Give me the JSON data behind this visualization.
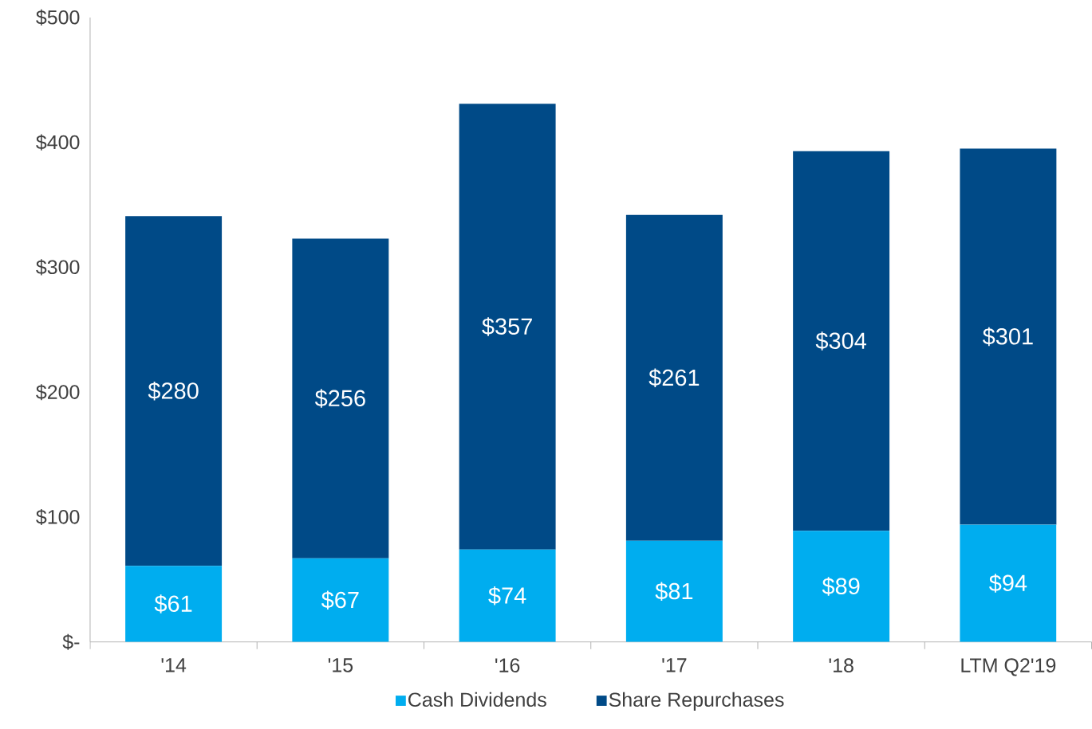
{
  "chart_data": {
    "type": "bar",
    "stacked": true,
    "legend": "bottom",
    "categories": [
      "'14",
      "'15",
      "'16",
      "'17",
      "'18",
      "LTM Q2'19"
    ],
    "series": [
      {
        "name": "Cash Dividends",
        "color": "#00adef",
        "values": [
          61,
          67,
          74,
          81,
          89,
          94
        ],
        "value_labels": [
          "$61",
          "$67",
          "$74",
          "$81",
          "$89",
          "$94"
        ]
      },
      {
        "name": "Share Repurchases",
        "color": "#004a87",
        "values": [
          280,
          256,
          357,
          261,
          304,
          301
        ],
        "value_labels": [
          "$280",
          "$256",
          "$357",
          "$261",
          "$304",
          "$301"
        ]
      }
    ],
    "ylim": [
      0,
      500
    ],
    "yticks": [
      {
        "value": 0,
        "label": "$-"
      },
      {
        "value": 100,
        "label": "$100"
      },
      {
        "value": 200,
        "label": "$200"
      },
      {
        "value": 300,
        "label": "$300"
      },
      {
        "value": 400,
        "label": "$400"
      },
      {
        "value": 500,
        "label": "$500"
      }
    ]
  }
}
